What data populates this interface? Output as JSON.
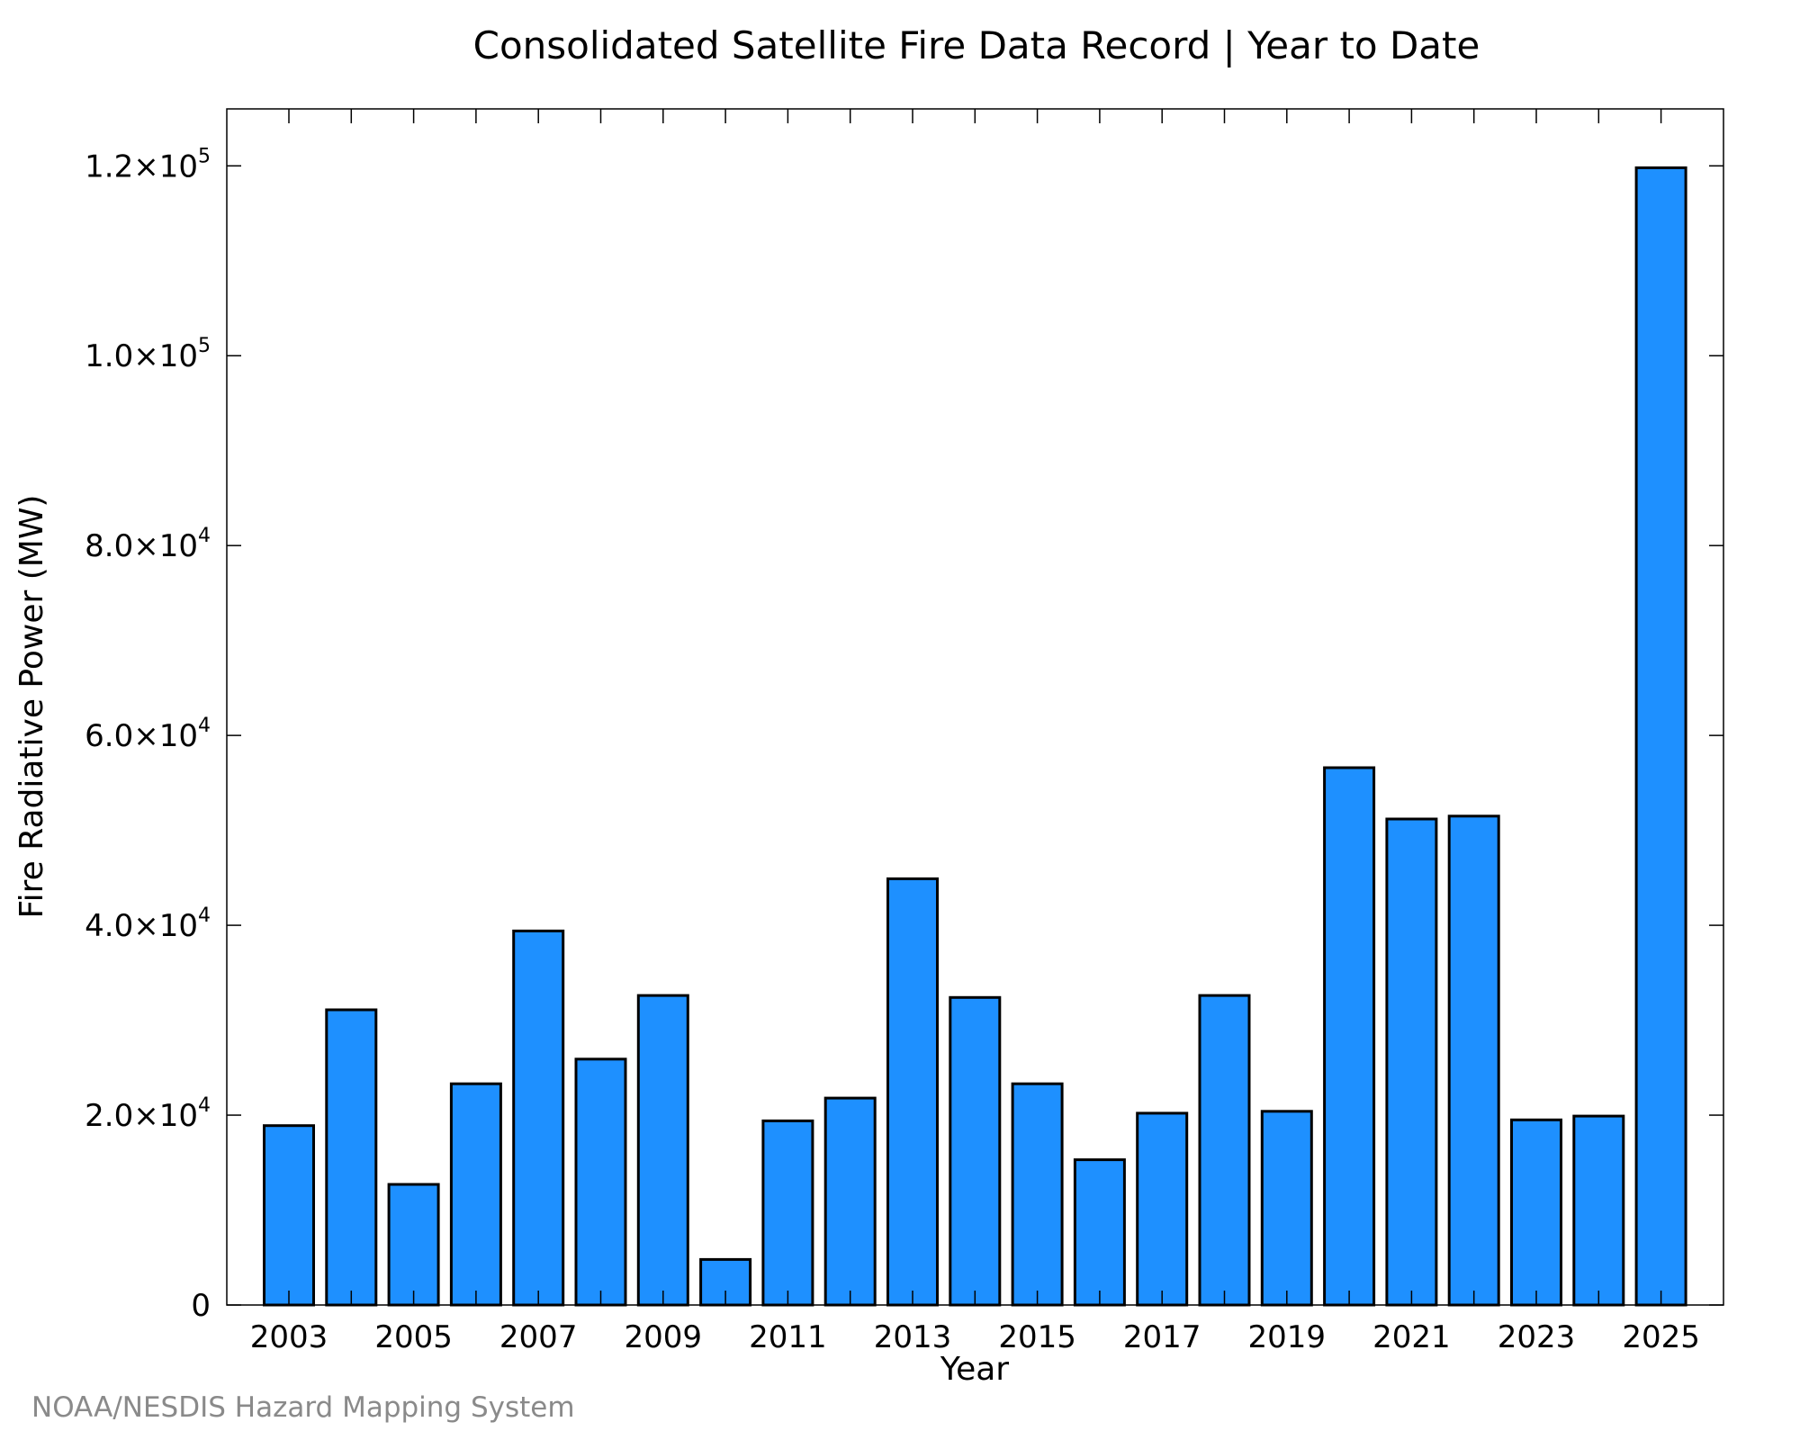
{
  "chart_data": {
    "type": "bar",
    "title": "Consolidated Satellite Fire Data Record | Year to Date",
    "xlabel": "Year",
    "ylabel": "Fire Radiative Power (MW)",
    "categories": [
      "2003",
      "2004",
      "2005",
      "2006",
      "2007",
      "2008",
      "2009",
      "2010",
      "2011",
      "2012",
      "2013",
      "2014",
      "2015",
      "2016",
      "2017",
      "2018",
      "2019",
      "2020",
      "2021",
      "2022",
      "2023",
      "2024",
      "2025"
    ],
    "values": [
      18900,
      31100,
      12700,
      23300,
      39400,
      25900,
      32600,
      4800,
      19400,
      21800,
      44900,
      32400,
      23300,
      15300,
      20200,
      32600,
      20400,
      56600,
      51200,
      51500,
      19500,
      19900,
      119800
    ],
    "ylim": [
      0,
      126000
    ],
    "yticks": [
      {
        "value": 0,
        "mantissa": "0",
        "exponent": ""
      },
      {
        "value": 20000,
        "mantissa": "2.0×10",
        "exponent": "4"
      },
      {
        "value": 40000,
        "mantissa": "4.0×10",
        "exponent": "4"
      },
      {
        "value": 60000,
        "mantissa": "6.0×10",
        "exponent": "4"
      },
      {
        "value": 80000,
        "mantissa": "8.0×10",
        "exponent": "4"
      },
      {
        "value": 100000,
        "mantissa": "1.0×10",
        "exponent": "5"
      },
      {
        "value": 120000,
        "mantissa": "1.2×10",
        "exponent": "5"
      }
    ],
    "xtick_labels": [
      "2003",
      "2005",
      "2007",
      "2009",
      "2011",
      "2013",
      "2015",
      "2017",
      "2019",
      "2021",
      "2023",
      "2025"
    ],
    "bar_color": "#1e90ff",
    "grid": false,
    "legend": "none"
  },
  "credit": "NOAA/NESDIS Hazard Mapping System"
}
